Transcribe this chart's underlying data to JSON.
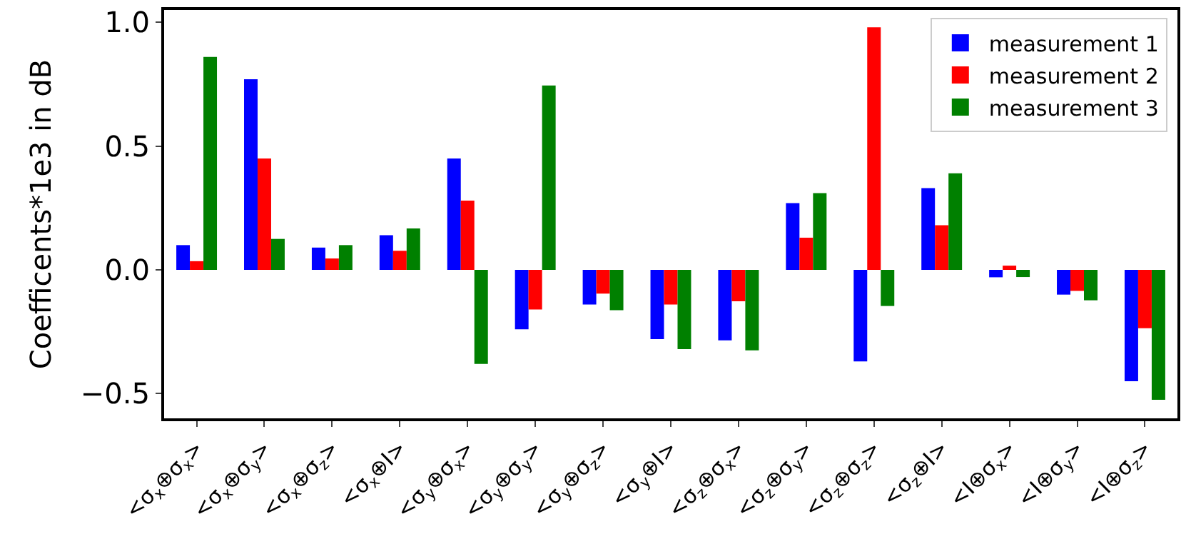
{
  "chart_data": {
    "type": "bar",
    "ylabel": "Coefficents*1e3 in dB",
    "categories": [
      "<σ$_{x}$⊕σ$_{x}$>",
      "<σ$_{x}$⊕σ$_{y}$>",
      "<σ$_{x}$⊕σ$_{z}$>",
      "<σ$_{x}$⊕I>",
      "<σ$_{y}$⊕σ$_{x}$>",
      "<σ$_{y}$⊕σ$_{y}$>",
      "<σ$_{y}$⊕σ$_{z}$>",
      "<σ$_{y}$⊕I>",
      "<σ$_{z}$⊕σ$_{x}$>",
      "<σ$_{z}$⊕σ$_{y}$>",
      "<σ$_{z}$⊕σ$_{z}$>",
      "<σ$_{z}$⊕I>",
      "<I⊕σ$_{x}$>",
      "<I⊕σ$_{y}$>",
      "<I⊕σ$_{z}$>"
    ],
    "series": [
      {
        "name": "measurement 1",
        "color": "#0000ff",
        "values": [
          0.1,
          0.77,
          0.09,
          0.14,
          0.45,
          -0.24,
          -0.14,
          -0.28,
          -0.285,
          0.27,
          -0.37,
          0.33,
          -0.03,
          -0.1,
          -0.45
        ]
      },
      {
        "name": "measurement 2",
        "color": "#ff0000",
        "values": [
          0.035,
          0.45,
          0.046,
          0.077,
          0.28,
          -0.16,
          -0.096,
          -0.14,
          -0.127,
          0.13,
          0.98,
          0.18,
          0.017,
          -0.085,
          -0.236
        ]
      },
      {
        "name": "measurement 3",
        "color": "#008000",
        "values": [
          0.86,
          0.125,
          0.1,
          0.167,
          -0.38,
          0.745,
          -0.163,
          -0.32,
          -0.325,
          0.31,
          -0.146,
          0.39,
          -0.029,
          -0.123,
          -0.525
        ]
      }
    ],
    "ylim": [
      -0.6,
      1.05
    ],
    "yticks": [
      {
        "value": -0.5,
        "label": "−0.5"
      },
      {
        "value": 0,
        "label": "0.0"
      },
      {
        "value": 0.5,
        "label": "0.5"
      },
      {
        "value": 1.0,
        "label": "1.0"
      }
    ],
    "legend": "top right"
  }
}
